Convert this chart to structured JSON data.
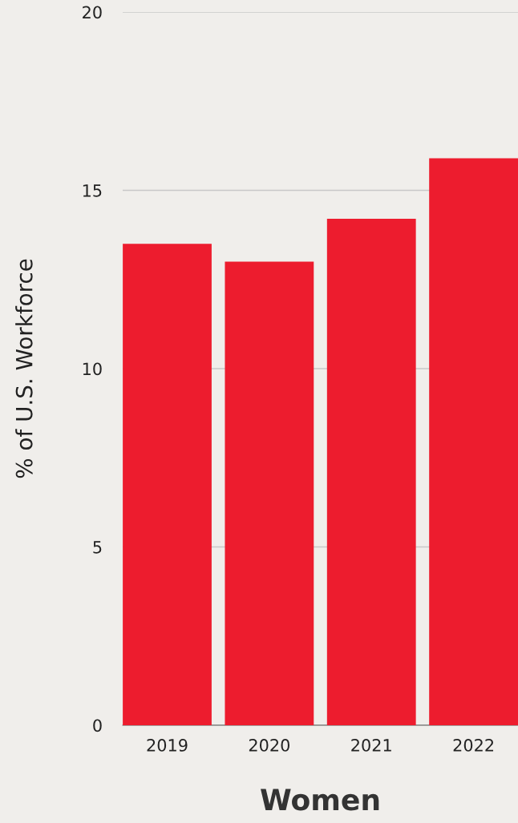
{
  "chart_data": {
    "type": "bar",
    "xlabel": "Women",
    "ylabel": "% of U.S. Workforce",
    "categories": [
      "2019",
      "2020",
      "2021",
      "2022"
    ],
    "values": [
      13.5,
      13.0,
      14.2,
      15.9
    ],
    "color": "#ed1c2e",
    "ylim": [
      0,
      20
    ],
    "yticks": [
      0,
      5,
      10,
      15,
      20
    ],
    "grid": "y"
  }
}
